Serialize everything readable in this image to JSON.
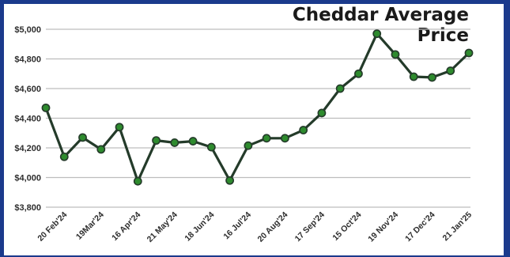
{
  "chart_data": {
    "type": "line",
    "title": "Cheddar Average Price",
    "xlabel": "",
    "ylabel": "",
    "ylim": [
      3800,
      5000
    ],
    "yticks": [
      "$3,800",
      "$4,000",
      "$4,200",
      "$4,400",
      "$4,600",
      "$4,800",
      "$5,000"
    ],
    "ytick_values": [
      3800,
      4000,
      4200,
      4400,
      4600,
      4800,
      5000
    ],
    "x_tick_labels": [
      "20 Feb'24",
      "19Mar'24",
      "16 Apr'24",
      "21 May'24",
      "18 Jun'24",
      "16 Jul'24",
      "20 Aug'24",
      "17 Sep'24",
      "15 Oct'24",
      "19 Nov'24",
      "17 Dec'24",
      "21 Jan'25"
    ],
    "x_tick_point_index": [
      1,
      3,
      5,
      7,
      9,
      11,
      13,
      15,
      17,
      19,
      21,
      23
    ],
    "values": [
      4470,
      4140,
      4270,
      4190,
      4340,
      3975,
      4250,
      4235,
      4245,
      4205,
      3980,
      4215,
      4265,
      4265,
      4320,
      4435,
      4600,
      4700,
      4970,
      4830,
      4680,
      4675,
      4720,
      4840
    ],
    "grid": true,
    "colors": {
      "line": "#243b2a",
      "marker": "#2e8b2e",
      "grid": "#bdbdbd",
      "frame": "#1b3a8c"
    }
  }
}
